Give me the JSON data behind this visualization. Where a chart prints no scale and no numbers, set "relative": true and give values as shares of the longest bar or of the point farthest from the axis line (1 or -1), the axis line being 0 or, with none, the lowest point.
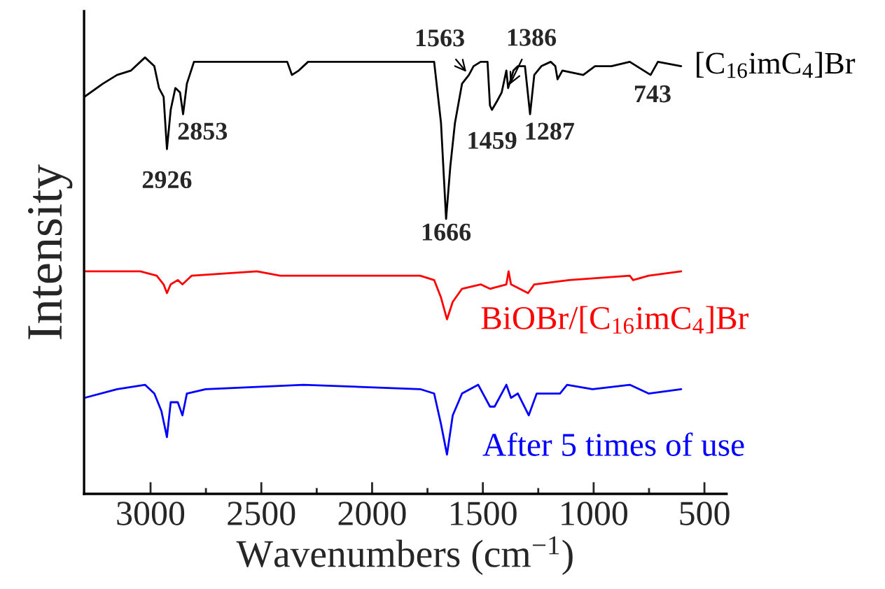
{
  "chart_data": {
    "type": "line",
    "relative": true,
    "xlabel": "Wavenumbers (cm$^{−1}$)",
    "ylabel": "Intensity",
    "xlim": [
      3300,
      400
    ],
    "xticks": [
      3000,
      {
        "value": 2750,
        "label": null
      },
      2500,
      {
        "value": 2250,
        "label": null
      },
      2000,
      {
        "value": 1750,
        "label": null
      },
      1500,
      {
        "value": 1250,
        "label": null
      },
      1000,
      {
        "value": 750,
        "label": null
      },
      500
    ],
    "grid": false,
    "legend": false,
    "tick_labels": "x",
    "line_style": "solid",
    "marker": "none",
    "series": [
      {
        "name": "[C$_{16}$imC$_{4}$]Br",
        "color": "#000000",
        "x": [
          3298,
          3215,
          3151,
          3088,
          3025,
          2983,
          2962,
          2941,
          2926,
          2909,
          2888,
          2867,
          2853,
          2836,
          2804,
          2773,
          2383,
          2362,
          2331,
          2289,
          1804,
          1720,
          1689,
          1666,
          1647,
          1626,
          1594,
          1563,
          1542,
          1510,
          1479,
          1468,
          1459,
          1436,
          1415,
          1394,
          1386,
          1362,
          1342,
          1310,
          1287,
          1268,
          1236,
          1194,
          1173,
          1163,
          1141,
          1047,
          994,
          920,
          837,
          774,
          743,
          710,
          605
        ],
        "values": [
          0.91,
          0.94,
          0.96,
          0.97,
          1.0,
          0.98,
          0.93,
          0.91,
          0.79,
          0.88,
          0.93,
          0.92,
          0.87,
          0.94,
          0.99,
          0.99,
          0.99,
          0.96,
          0.97,
          0.99,
          0.99,
          0.99,
          0.85,
          0.63,
          0.75,
          0.85,
          0.94,
          0.96,
          0.98,
          0.99,
          0.99,
          0.89,
          0.88,
          0.9,
          0.92,
          0.97,
          0.93,
          0.97,
          0.98,
          0.98,
          0.87,
          0.96,
          0.98,
          0.99,
          0.98,
          0.95,
          0.97,
          0.96,
          0.98,
          0.98,
          0.99,
          0.97,
          0.96,
          0.99,
          0.98
        ]
      },
      {
        "name": "BiOBr/[C$_{16}$imC$_{4}$]Br",
        "color": "#ff0000",
        "x": [
          3298,
          3046,
          2972,
          2941,
          2926,
          2909,
          2877,
          2856,
          2814,
          2520,
          2415,
          2289,
          1783,
          1720,
          1689,
          1662,
          1636,
          1594,
          1510,
          1468,
          1394,
          1384,
          1373,
          1296,
          1268,
          1110,
          837,
          822,
          752,
          605
        ],
        "values": [
          0.51,
          0.51,
          0.5,
          0.48,
          0.46,
          0.48,
          0.49,
          0.48,
          0.5,
          0.51,
          0.5,
          0.5,
          0.5,
          0.49,
          0.45,
          0.4,
          0.44,
          0.47,
          0.48,
          0.47,
          0.48,
          0.51,
          0.48,
          0.46,
          0.48,
          0.49,
          0.5,
          0.49,
          0.5,
          0.51
        ]
      },
      {
        "name": "After 5 times of use",
        "color": "#0000ff",
        "x": [
          3298,
          3151,
          3025,
          2983,
          2951,
          2926,
          2909,
          2877,
          2856,
          2836,
          2751,
          2310,
          1783,
          1720,
          1689,
          1662,
          1636,
          1594,
          1521,
          1468,
          1447,
          1394,
          1373,
          1342,
          1293,
          1257,
          1152,
          1120,
          1005,
          837,
          752,
          605
        ],
        "values": [
          0.22,
          0.24,
          0.25,
          0.23,
          0.19,
          0.13,
          0.21,
          0.21,
          0.18,
          0.23,
          0.24,
          0.25,
          0.24,
          0.23,
          0.16,
          0.09,
          0.18,
          0.23,
          0.25,
          0.2,
          0.2,
          0.25,
          0.22,
          0.23,
          0.18,
          0.23,
          0.23,
          0.25,
          0.24,
          0.25,
          0.23,
          0.24
        ]
      }
    ],
    "annotations": [
      {
        "text": "2926",
        "x": 2926,
        "y": 0.79
      },
      {
        "text": "2853",
        "x": 2853,
        "y": 0.87
      },
      {
        "text": "1666",
        "x": 1666,
        "y": 0.63
      },
      {
        "text": "1563",
        "x": 1563,
        "y": 0.96
      },
      {
        "text": "1386",
        "x": 1386,
        "y": 0.93
      },
      {
        "text": "1459",
        "x": 1459,
        "y": 0.88
      },
      {
        "text": "1287",
        "x": 1287,
        "y": 0.87
      },
      {
        "text": "743",
        "x": 743,
        "y": 0.96
      }
    ]
  }
}
